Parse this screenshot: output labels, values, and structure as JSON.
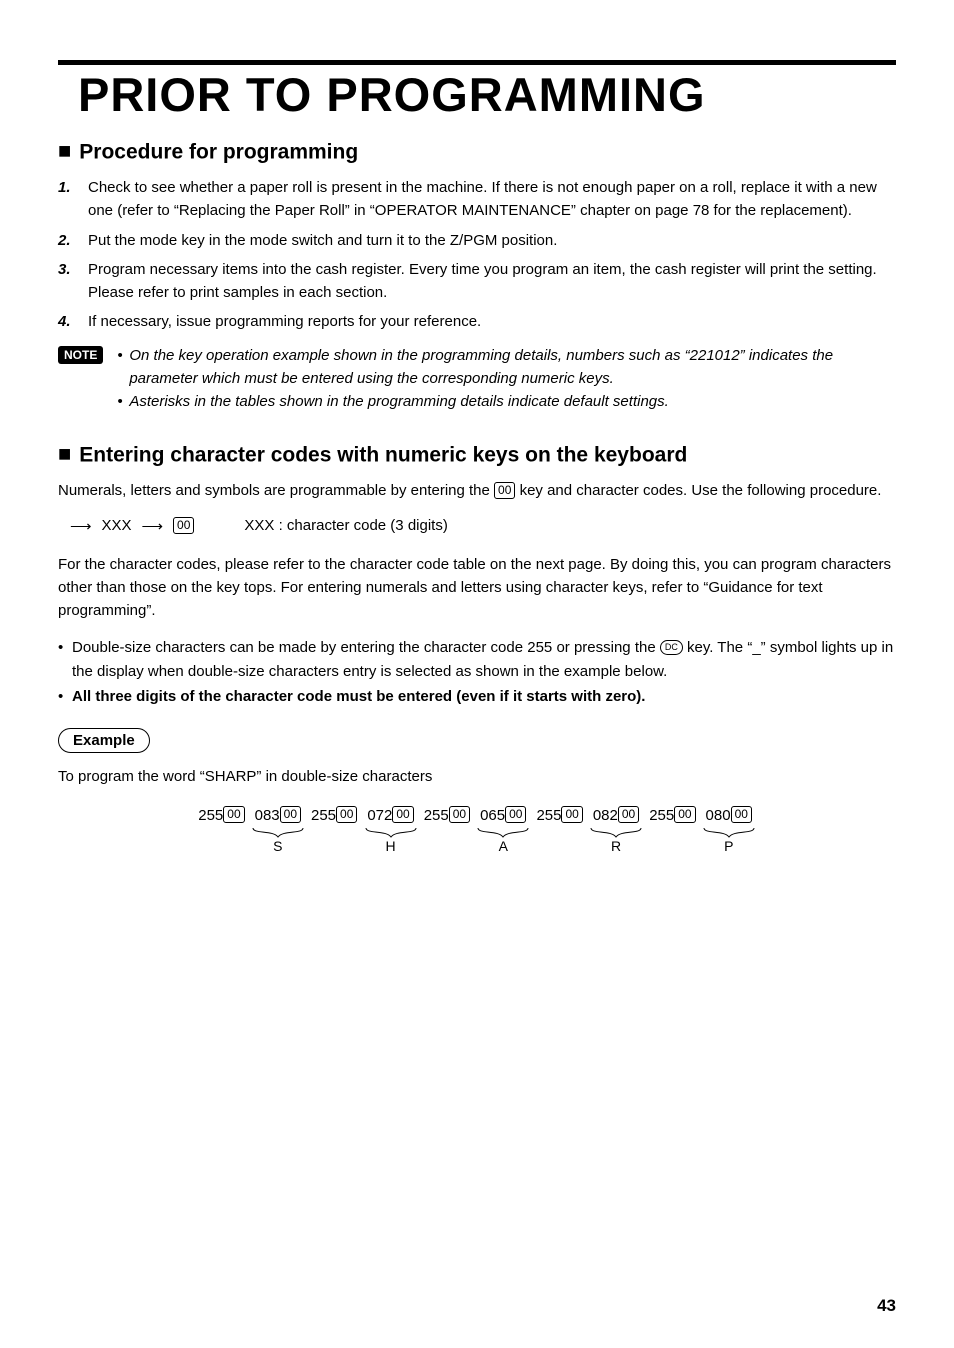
{
  "page": {
    "title": "PRIOR TO PROGRAMMING",
    "number": "43"
  },
  "section1": {
    "heading": "Procedure for programming",
    "steps": [
      {
        "num": "1.",
        "text": "Check to see whether a paper roll is present in the machine. If there is not enough paper on a roll, replace it with a new one (refer to “Replacing the Paper Roll” in “OPERATOR MAINTENANCE” chapter on page 78 for the replacement)."
      },
      {
        "num": "2.",
        "text": "Put the mode key in the mode switch and turn it to the Z/PGM position."
      },
      {
        "num": "3.",
        "text": "Program necessary items into the cash register. Every time you program an item, the cash register will print the setting. Please refer to print samples in each section."
      },
      {
        "num": "4.",
        "text": "If necessary, issue programming reports for your reference."
      }
    ],
    "note": {
      "label": "NOTE",
      "bullets": [
        "On the key operation example shown in the programming details, numbers such as “221012” indicates the parameter which must be entered using the corresponding numeric keys.",
        "Asterisks in the tables shown in the programming details indicate default settings."
      ]
    }
  },
  "section2": {
    "heading": "Entering character codes with numeric keys on the keyboard",
    "intro_a": "Numerals, letters and symbols are programmable by entering the ",
    "intro_key": "00",
    "intro_b": " key and character codes. Use the following procedure.",
    "proc": {
      "xxx": "XXX",
      "key": "00",
      "desc": "XXX : character code (3 digits)"
    },
    "para2": "For the character codes, please refer to the character code table on the next page. By doing this, you can program characters other than those on the key tops. For entering numerals and letters using character keys, refer to “Guidance for text programming”.",
    "bullets": [
      {
        "pre": "Double-size characters can be made by entering the character code 255 or pressing the ",
        "key": "DC",
        "post": " key. The “_” symbol lights up in the display when double-size characters entry is selected as shown in the example below.",
        "bold": false
      },
      {
        "pre": "All three digits of the character code must be entered (even if it starts with zero).",
        "key": null,
        "post": "",
        "bold": true
      }
    ],
    "example": {
      "label": "Example",
      "caption": "To program the word “SHARP” in double-size characters",
      "key": "00",
      "groups": [
        {
          "prefix": "255",
          "code": "083",
          "letter": "S"
        },
        {
          "prefix": "255",
          "code": "072",
          "letter": "H"
        },
        {
          "prefix": "255",
          "code": "065",
          "letter": "A"
        },
        {
          "prefix": "255",
          "code": "082",
          "letter": "R"
        },
        {
          "prefix": "255",
          "code": "080",
          "letter": "P"
        }
      ]
    }
  }
}
